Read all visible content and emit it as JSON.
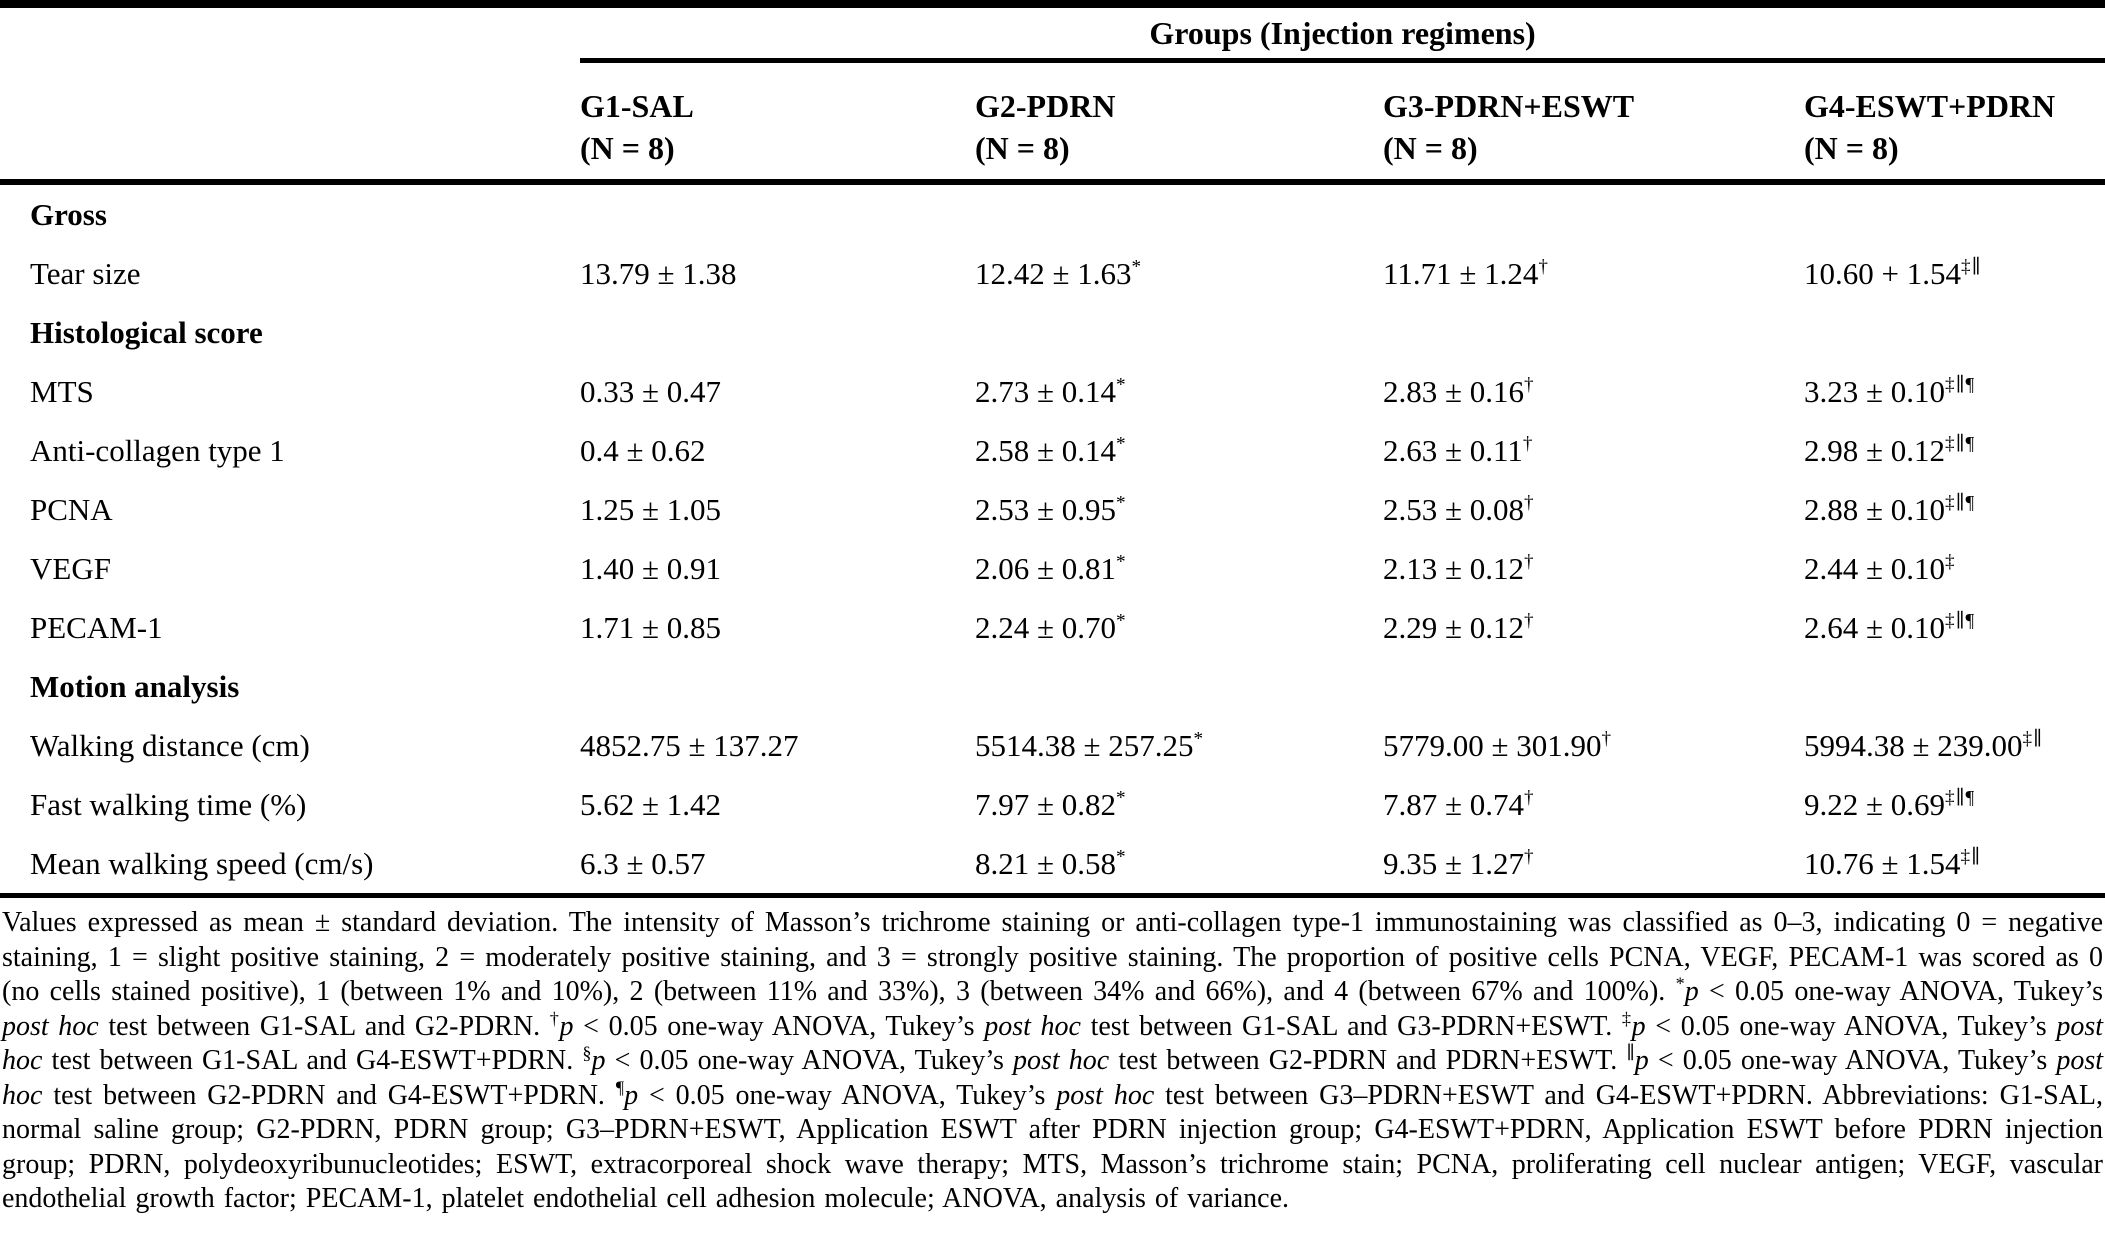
{
  "table": {
    "group_header": "Groups (Injection regimens)",
    "columns": [
      {
        "name": "G1-SAL",
        "n": "(N = 8)"
      },
      {
        "name": "G2-PDRN",
        "n": "(N = 8)"
      },
      {
        "name": "G3-PDRN+ESWT",
        "n": "(N = 8)"
      },
      {
        "name": "G4-ESWT+PDRN",
        "n": "(N = 8)"
      }
    ],
    "rows": [
      {
        "type": "section",
        "label": "Gross"
      },
      {
        "type": "data",
        "label": "Tear size",
        "cells": [
          {
            "value": "13.79 ± 1.38",
            "sup": ""
          },
          {
            "value": "12.42 ± 1.63",
            "sup": "*"
          },
          {
            "value": "11.71 ± 1.24",
            "sup": "†"
          },
          {
            "value": "10.60 + 1.54",
            "sup": "‡∥"
          }
        ]
      },
      {
        "type": "section",
        "label": "Histological score"
      },
      {
        "type": "data",
        "label": "MTS",
        "cells": [
          {
            "value": "0.33 ± 0.47",
            "sup": ""
          },
          {
            "value": "2.73 ± 0.14",
            "sup": "*"
          },
          {
            "value": "2.83 ± 0.16",
            "sup": "†"
          },
          {
            "value": "3.23 ± 0.10",
            "sup": "‡∥¶"
          }
        ]
      },
      {
        "type": "data",
        "label": "Anti-collagen type 1",
        "cells": [
          {
            "value": "0.4 ± 0.62",
            "sup": ""
          },
          {
            "value": "2.58 ± 0.14",
            "sup": "*"
          },
          {
            "value": "2.63 ± 0.11",
            "sup": "†"
          },
          {
            "value": "2.98 ± 0.12",
            "sup": "‡∥¶"
          }
        ]
      },
      {
        "type": "data",
        "label": "PCNA",
        "cells": [
          {
            "value": "1.25 ± 1.05",
            "sup": ""
          },
          {
            "value": "2.53 ± 0.95",
            "sup": "*"
          },
          {
            "value": "2.53 ± 0.08",
            "sup": "†"
          },
          {
            "value": "2.88 ± 0.10",
            "sup": "‡∥¶"
          }
        ]
      },
      {
        "type": "data",
        "label": "VEGF",
        "cells": [
          {
            "value": "1.40 ± 0.91",
            "sup": ""
          },
          {
            "value": "2.06 ± 0.81",
            "sup": "*"
          },
          {
            "value": "2.13 ± 0.12",
            "sup": "†"
          },
          {
            "value": "2.44 ± 0.10",
            "sup": "‡"
          }
        ]
      },
      {
        "type": "data",
        "label": "PECAM-1",
        "cells": [
          {
            "value": "1.71 ± 0.85",
            "sup": ""
          },
          {
            "value": "2.24 ± 0.70",
            "sup": "*"
          },
          {
            "value": "2.29 ± 0.12",
            "sup": "†"
          },
          {
            "value": "2.64 ± 0.10",
            "sup": "‡∥¶"
          }
        ]
      },
      {
        "type": "section",
        "label": "Motion analysis"
      },
      {
        "type": "data",
        "label": "Walking distance (cm)",
        "cells": [
          {
            "value": "4852.75 ± 137.27",
            "sup": ""
          },
          {
            "value": "5514.38 ± 257.25",
            "sup": "*"
          },
          {
            "value": "5779.00 ± 301.90",
            "sup": "†"
          },
          {
            "value": "5994.38 ± 239.00",
            "sup": "‡∥"
          }
        ]
      },
      {
        "type": "data",
        "label": "Fast walking time (%)",
        "cells": [
          {
            "value": "5.62 ± 1.42",
            "sup": ""
          },
          {
            "value": "7.97 ± 0.82",
            "sup": "*"
          },
          {
            "value": "7.87 ± 0.74",
            "sup": "†"
          },
          {
            "value": "9.22 ± 0.69",
            "sup": "‡∥¶"
          }
        ]
      },
      {
        "type": "data",
        "label": "Mean walking speed (cm/s)",
        "cells": [
          {
            "value": "6.3 ± 0.57",
            "sup": ""
          },
          {
            "value": "8.21 ± 0.58",
            "sup": "*"
          },
          {
            "value": "9.35 ± 1.27",
            "sup": "†"
          },
          {
            "value": "10.76 ± 1.54",
            "sup": "‡∥"
          }
        ]
      }
    ]
  },
  "footnote": {
    "segments": [
      {
        "text": "Values expressed as mean ± standard deviation. The intensity of Masson’s trichrome staining or anti-collagen type-1 immunostaining was classified as 0–3, indicating 0 = negative staining, 1 = slight positive staining, 2 = moderately positive staining, and 3 = strongly positive staining. The proportion of positive cells PCNA, VEGF, PECAM-1 was scored as 0 (no cells stained positive), 1 (between 1% and 10%), 2 (between 11% and 33%), 3 (between 34% and 66%), and 4 (between 67% and 100%). "
      },
      {
        "text": "*",
        "sup": true
      },
      {
        "text": "p",
        "italic": true
      },
      {
        "text": " < 0.05 one-way ANOVA, Tukey’s "
      },
      {
        "text": "post hoc",
        "italic": true
      },
      {
        "text": " test between G1-SAL and G2-PDRN. "
      },
      {
        "text": "†",
        "sup": true
      },
      {
        "text": "p",
        "italic": true
      },
      {
        "text": " < 0.05 one-way ANOVA, Tukey’s "
      },
      {
        "text": "post hoc",
        "italic": true
      },
      {
        "text": " test between G1-SAL and G3-PDRN+ESWT. "
      },
      {
        "text": "‡",
        "sup": true
      },
      {
        "text": "p",
        "italic": true
      },
      {
        "text": " < 0.05 one-way ANOVA, Tukey’s "
      },
      {
        "text": "post hoc",
        "italic": true
      },
      {
        "text": " test between G1-SAL and G4-ESWT+PDRN. "
      },
      {
        "text": "§",
        "sup": true
      },
      {
        "text": "p",
        "italic": true
      },
      {
        "text": " < 0.05 one-way ANOVA, Tukey’s "
      },
      {
        "text": "post hoc",
        "italic": true
      },
      {
        "text": " test between G2-PDRN and PDRN+ESWT. "
      },
      {
        "text": "∥",
        "sup": true
      },
      {
        "text": "p",
        "italic": true
      },
      {
        "text": " < 0.05 one-way ANOVA, Tukey’s "
      },
      {
        "text": "post hoc",
        "italic": true
      },
      {
        "text": " test between G2-PDRN and G4-ESWT+PDRN. "
      },
      {
        "text": "¶",
        "sup": true
      },
      {
        "text": "p",
        "italic": true
      },
      {
        "text": " < 0.05 one-way ANOVA, Tukey’s "
      },
      {
        "text": "post hoc",
        "italic": true
      },
      {
        "text": " test between G3–PDRN+ESWT and G4-ESWT+PDRN. Abbreviations: G1-SAL, normal saline group; G2-PDRN, PDRN group; G3–PDRN+ESWT, Application ESWT after PDRN injection group; G4-ESWT+PDRN, Application ESWT before PDRN injection group; PDRN, polydeoxyribunucleotides; ESWT, extracorporeal shock wave therapy; MTS, Masson’s trichrome stain; PCNA, proliferating cell nuclear antigen; VEGF, vascular endothelial growth factor; PECAM-1, platelet endothelial cell adhesion molecule; ANOVA, analysis of variance."
      }
    ]
  }
}
